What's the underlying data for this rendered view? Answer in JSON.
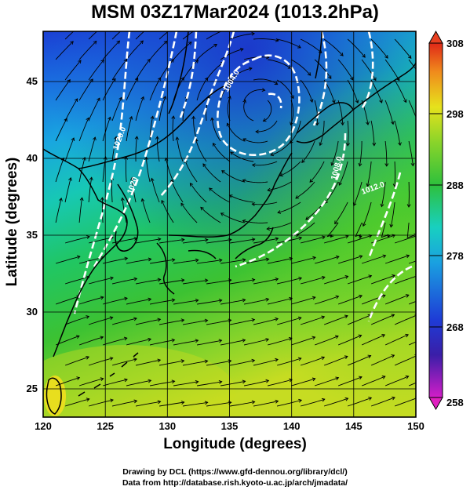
{
  "title": "MSM 03Z17Mar2024 (1013.2hPa)",
  "xlabel": "Longitude (degrees)",
  "ylabel": "Latitude  (degrees)",
  "credit_line1": "Drawing by DCL (https://www.gfd-dennou.org/library/dcl/)",
  "credit_line2": "Data from http://database.rish.kyoto-u.ac.jp/arch/jmadata/",
  "map": {
    "lon_range": [
      120,
      150
    ],
    "lat_range": [
      22.5,
      47.6
    ],
    "lon_ticks": [
      "120",
      "125",
      "130",
      "135",
      "140",
      "145",
      "150"
    ],
    "lat_ticks": [
      "25",
      "30",
      "35",
      "40",
      "45"
    ],
    "field": "temperature (K) with streamlines and isobars"
  },
  "colorbar": {
    "ticks": [
      "308",
      "298",
      "288",
      "278",
      "268",
      "258"
    ],
    "range": [
      258,
      308
    ]
  },
  "contour_labels": [
    "1020.0",
    "1020",
    "1016",
    "1004.0",
    "1008.0",
    "1012.0"
  ],
  "colors": {
    "cold": "#1e3cd6",
    "cool": "#1aa0e0",
    "teal": "#18c8a8",
    "green": "#2ebd3c",
    "yellowgreen": "#a8d62a",
    "yellow": "#e8e21e",
    "isobar": "#ffffff",
    "coast": "#000000"
  }
}
